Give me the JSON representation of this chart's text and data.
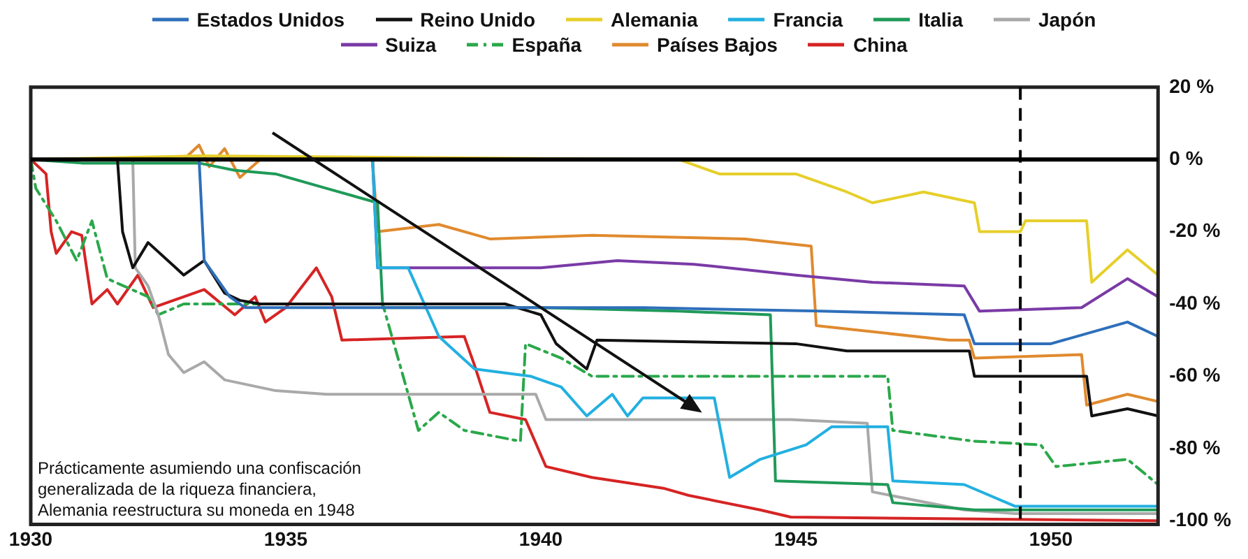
{
  "chart_data": {
    "type": "line",
    "xlim": [
      1930,
      1952.1
    ],
    "xticks": [
      1930,
      1935,
      1940,
      1945,
      1950
    ],
    "ylim": [
      -101,
      20
    ],
    "yticks": [
      {
        "value": 20,
        "label": "20 %"
      },
      {
        "value": 0,
        "label": "0 %"
      },
      {
        "value": -20,
        "label": "-20 %"
      },
      {
        "value": -40,
        "label": "-40 %"
      },
      {
        "value": -60,
        "label": "-60 %"
      },
      {
        "value": -80,
        "label": "-80 %"
      },
      {
        "value": -100,
        "label": "-100 %"
      }
    ],
    "grid": false,
    "legend": "top",
    "marker": "none",
    "annotations": [
      "Prácticamente asumiendo una confiscación generalizada de la riqueza financiera, Alemania reestructura su moneda en 1948"
    ],
    "ref_lines": [
      {
        "axis": "y",
        "value": 0,
        "color": "#000000",
        "line_style": "solid"
      },
      {
        "axis": "x",
        "value": 1949.4,
        "color": "#000000",
        "line_style": "dashed"
      }
    ],
    "series": [
      {
        "name": "Estados Unidos",
        "color": "#2e6fba",
        "x": [
          1930,
          1933.3,
          1933.4,
          1933.9,
          1934.2,
          1936.7,
          1942,
          1945.5,
          1948.3,
          1948.5,
          1950,
          1951.5,
          1952.1
        ],
        "values": [
          0,
          0,
          -28,
          -38,
          -41,
          -41,
          -41,
          -42,
          -43,
          -51,
          -51,
          -45,
          -49
        ]
      },
      {
        "name": "Reino Unido",
        "color": "#111111",
        "x": [
          1930,
          1931.7,
          1931.8,
          1932,
          1932.3,
          1933,
          1933.4,
          1933.8,
          1934.1,
          1934.5,
          1937.1,
          1939.3,
          1940,
          1940.3,
          1940.9,
          1941.1,
          1945,
          1946,
          1948.4,
          1948.5,
          1950.7,
          1950.8,
          1951.5,
          1952.1
        ],
        "values": [
          0,
          0,
          -20,
          -30,
          -23,
          -32,
          -28,
          -37,
          -39,
          -40,
          -40,
          -40,
          -43,
          -51,
          -58,
          -50,
          -51,
          -53,
          -53,
          -60,
          -60,
          -71,
          -69,
          -71
        ]
      },
      {
        "name": "Alemania",
        "color": "#e6cf2a",
        "x": [
          1930,
          1933.3,
          1942.7,
          1943.5,
          1945,
          1946,
          1946.5,
          1947.5,
          1948.5,
          1948.6,
          1949.4,
          1949.5,
          1950.7,
          1950.8,
          1951.5,
          1952.1
        ],
        "values": [
          0,
          1,
          0,
          -4,
          -4,
          -9,
          -12,
          -9,
          -12,
          -20,
          -20,
          -17,
          -17,
          -34,
          -25,
          -32
        ]
      },
      {
        "name": "Francia",
        "color": "#22b0e0",
        "x": [
          1930,
          1936.7,
          1936.8,
          1937.4,
          1938,
          1938.7,
          1939.8,
          1940.4,
          1940.9,
          1941.4,
          1941.7,
          1942,
          1943.4,
          1943.7,
          1944.3,
          1945.2,
          1945.7,
          1946.8,
          1946.9,
          1948.3,
          1949.3,
          1952.1
        ],
        "values": [
          0,
          0,
          -30,
          -30,
          -49,
          -58,
          -60,
          -63,
          -71,
          -65,
          -71,
          -66,
          -66,
          -88,
          -83,
          -79,
          -74,
          -74,
          -89,
          -90,
          -96,
          -96
        ]
      },
      {
        "name": "Italia",
        "color": "#1f9a58",
        "x": [
          1930,
          1931,
          1933.3,
          1934,
          1934.8,
          1935.8,
          1936.8,
          1936.9,
          1940,
          1942.7,
          1944.5,
          1944.6,
          1946.8,
          1946.9,
          1948.5,
          1952.1
        ],
        "values": [
          0,
          -1,
          -1,
          -3,
          -4,
          -8,
          -12,
          -41,
          -41,
          -42,
          -43,
          -89,
          -90,
          -95,
          -97,
          -97
        ]
      },
      {
        "name": "Japón",
        "color": "#a9a9a9",
        "x": [
          1930,
          1932,
          1932.05,
          1932.3,
          1932.5,
          1932.7,
          1933,
          1933.4,
          1933.8,
          1934.8,
          1935.8,
          1939.9,
          1940.1,
          1944.9,
          1946.4,
          1946.5,
          1948.3,
          1949.3,
          1952.1
        ],
        "values": [
          0,
          0,
          -30,
          -35,
          -43,
          -54,
          -59,
          -56,
          -61,
          -64,
          -65,
          -65,
          -72,
          -72,
          -73,
          -92,
          -97,
          -98,
          -98
        ]
      },
      {
        "name": "Suiza",
        "color": "#7a3aa6",
        "x": [
          1930,
          1936.7,
          1936.8,
          1940,
          1941.5,
          1943,
          1945,
          1946.5,
          1948.3,
          1948.6,
          1950.6,
          1951.5,
          1952.1
        ],
        "values": [
          0,
          0,
          -30,
          -30,
          -28,
          -29,
          -32,
          -34,
          -35,
          -42,
          -41,
          -33,
          -38
        ]
      },
      {
        "name": "España",
        "color": "#2aa84a",
        "line_style": "dashed",
        "x": [
          1930,
          1930.1,
          1930.5,
          1930.9,
          1931.2,
          1931.5,
          1932.3,
          1932.5,
          1933,
          1936.9,
          1937.6,
          1938,
          1938.5,
          1939.6,
          1939.7,
          1940.4,
          1941,
          1946.8,
          1946.9,
          1948.5,
          1949.8,
          1950.1,
          1951.5,
          1952.1
        ],
        "values": [
          0,
          -8,
          -17,
          -28,
          -17,
          -33,
          -38,
          -43,
          -40,
          -40,
          -75,
          -70,
          -75,
          -78,
          -51,
          -55,
          -60,
          -60,
          -75,
          -78,
          -79,
          -85,
          -83,
          -90
        ]
      },
      {
        "name": "Países Bajos",
        "color": "#e08a2e",
        "x": [
          1930,
          1933,
          1933.3,
          1933.5,
          1933.8,
          1934.1,
          1934.5,
          1936.7,
          1936.8,
          1938,
          1939,
          1941,
          1944,
          1945.3,
          1945.4,
          1948,
          1948.4,
          1948.5,
          1950.6,
          1950.7,
          1951.5,
          1952.1
        ],
        "values": [
          0,
          0,
          4,
          -2,
          3,
          -5,
          0,
          0,
          -20,
          -18,
          -22,
          -21,
          -22,
          -24,
          -46,
          -50,
          -50,
          -55,
          -54,
          -68,
          -65,
          -67
        ]
      },
      {
        "name": "China",
        "color": "#d62424",
        "x": [
          1930,
          1930.3,
          1930.4,
          1930.5,
          1930.8,
          1931,
          1931.2,
          1931.5,
          1931.7,
          1932.1,
          1932.4,
          1933.4,
          1934,
          1934.4,
          1934.6,
          1935,
          1935.6,
          1935.9,
          1936.1,
          1938.5,
          1938.7,
          1939,
          1939.7,
          1940.1,
          1941,
          1942.4,
          1942.9,
          1944.3,
          1944.9,
          1952.1
        ],
        "values": [
          0,
          -4,
          -20,
          -26,
          -20,
          -21,
          -40,
          -36,
          -40,
          -32,
          -41,
          -36,
          -43,
          -38,
          -45,
          -41,
          -30,
          -38,
          -50,
          -49,
          -57,
          -70,
          -72,
          -85,
          -88,
          -91,
          -93,
          -97,
          -99,
          -100
        ]
      }
    ]
  }
}
